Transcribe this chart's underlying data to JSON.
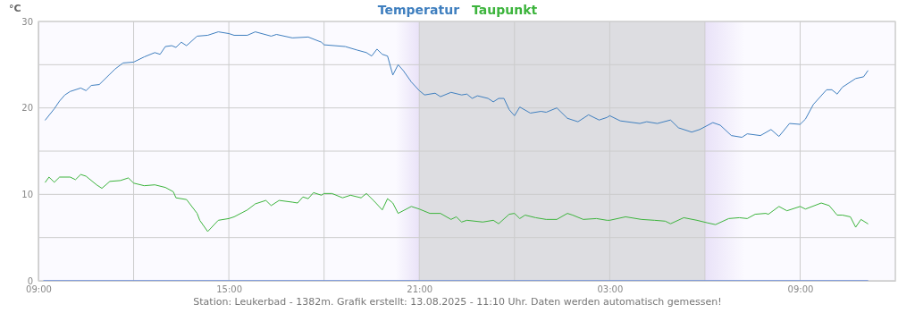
{
  "chart_data": {
    "type": "line",
    "ylabel": "°C",
    "legend": "top",
    "grid": true,
    "line_style": "solid",
    "xlim": [
      "2025-08-12T09:00",
      "2025-08-13T12:00"
    ],
    "xticks": [
      {
        "value": "2025-08-12T09:00",
        "label": "09:00"
      },
      {
        "value": "2025-08-12T12:00",
        "label": null
      },
      {
        "value": "2025-08-12T15:00",
        "label": "15:00"
      },
      {
        "value": "2025-08-12T18:00",
        "label": null
      },
      {
        "value": "2025-08-12T21:00",
        "label": "21:00"
      },
      {
        "value": "2025-08-13T00:00",
        "label": null
      },
      {
        "value": "2025-08-13T03:00",
        "label": "03:00"
      },
      {
        "value": "2025-08-13T06:00",
        "label": null
      },
      {
        "value": "2025-08-13T09:00",
        "label": "09:00"
      },
      {
        "value": "2025-08-13T12:00",
        "label": null
      }
    ],
    "ylim": [
      0,
      30
    ],
    "yticks": [
      0,
      {
        "value": 5,
        "label": null
      },
      10,
      {
        "value": 15,
        "label": null
      },
      20,
      {
        "value": 25,
        "label": null
      },
      30
    ],
    "bands": [
      {
        "axis": "x",
        "from": "2025-08-12T20:15",
        "to": "2025-08-12T21:00",
        "color": "#e9e2f8"
      },
      {
        "axis": "x",
        "from": "2025-08-12T21:00",
        "to": "2025-08-13T06:00",
        "color": "#dddde1"
      },
      {
        "axis": "x",
        "from": "2025-08-13T06:00",
        "to": "2025-08-13T07:15",
        "color": "#e9e2f8"
      }
    ],
    "annotations": [
      "Station: Leukerbad - 1382m. Grafik erstellt: 13.08.2025 - 11:10 Uhr. Daten werden automatisch gemessen!"
    ],
    "series": [
      {
        "name": "Temperatur",
        "color": "#3f7fbf",
        "x": [
          "2025-08-12T09:13",
          "2025-08-12T09:30",
          "2025-08-12T09:40",
          "2025-08-12T09:50",
          "2025-08-12T10:00",
          "2025-08-12T10:20",
          "2025-08-12T10:30",
          "2025-08-12T10:40",
          "2025-08-12T10:55",
          "2025-08-12T11:15",
          "2025-08-12T11:25",
          "2025-08-12T11:40",
          "2025-08-12T12:00",
          "2025-08-12T12:20",
          "2025-08-12T12:40",
          "2025-08-12T12:50",
          "2025-08-12T13:00",
          "2025-08-12T13:12",
          "2025-08-12T13:20",
          "2025-08-12T13:30",
          "2025-08-12T13:40",
          "2025-08-12T14:00",
          "2025-08-12T14:20",
          "2025-08-12T14:40",
          "2025-08-12T15:00",
          "2025-08-12T15:10",
          "2025-08-12T15:35",
          "2025-08-12T15:50",
          "2025-08-12T16:20",
          "2025-08-12T16:30",
          "2025-08-12T17:00",
          "2025-08-12T17:30",
          "2025-08-12T17:55",
          "2025-08-12T18:00",
          "2025-08-12T18:40",
          "2025-08-12T19:02",
          "2025-08-12T19:20",
          "2025-08-12T19:30",
          "2025-08-12T19:40",
          "2025-08-12T19:50",
          "2025-08-12T20:00",
          "2025-08-12T20:10",
          "2025-08-12T20:20",
          "2025-08-12T20:30",
          "2025-08-12T20:45",
          "2025-08-12T21:00",
          "2025-08-12T21:10",
          "2025-08-12T21:30",
          "2025-08-12T21:40",
          "2025-08-12T22:00",
          "2025-08-12T22:20",
          "2025-08-12T22:30",
          "2025-08-12T22:40",
          "2025-08-12T22:50",
          "2025-08-12T23:10",
          "2025-08-12T23:20",
          "2025-08-12T23:30",
          "2025-08-12T23:40",
          "2025-08-12T23:50",
          "2025-08-13T00:00",
          "2025-08-13T00:10",
          "2025-08-13T00:30",
          "2025-08-13T00:50",
          "2025-08-13T01:00",
          "2025-08-13T01:20",
          "2025-08-13T01:40",
          "2025-08-13T02:00",
          "2025-08-13T02:20",
          "2025-08-13T02:40",
          "2025-08-13T02:55",
          "2025-08-13T03:00",
          "2025-08-13T03:20",
          "2025-08-13T03:57",
          "2025-08-13T04:10",
          "2025-08-13T04:30",
          "2025-08-13T04:55",
          "2025-08-13T05:10",
          "2025-08-13T05:35",
          "2025-08-13T05:50",
          "2025-08-13T06:15",
          "2025-08-13T06:29",
          "2025-08-13T06:50",
          "2025-08-13T07:10",
          "2025-08-13T07:20",
          "2025-08-13T07:45",
          "2025-08-13T08:05",
          "2025-08-13T08:20",
          "2025-08-13T08:40",
          "2025-08-13T09:00",
          "2025-08-13T09:10",
          "2025-08-13T09:25",
          "2025-08-13T09:50",
          "2025-08-13T10:00",
          "2025-08-13T10:10",
          "2025-08-13T10:20",
          "2025-08-13T10:45",
          "2025-08-13T11:00",
          "2025-08-13T11:08"
        ],
        "values": [
          18.6,
          19.9,
          20.8,
          21.5,
          21.9,
          22.3,
          22.0,
          22.6,
          22.7,
          23.9,
          24.5,
          25.2,
          25.3,
          25.9,
          26.4,
          26.2,
          27.1,
          27.2,
          27.0,
          27.6,
          27.2,
          28.3,
          28.4,
          28.8,
          28.6,
          28.4,
          28.4,
          28.8,
          28.3,
          28.5,
          28.1,
          28.2,
          27.6,
          27.3,
          27.1,
          26.7,
          26.4,
          26.0,
          26.8,
          26.2,
          26.0,
          23.8,
          25.0,
          24.3,
          23.0,
          22.0,
          21.5,
          21.7,
          21.3,
          21.8,
          21.5,
          21.6,
          21.1,
          21.4,
          21.1,
          20.7,
          21.1,
          21.1,
          19.8,
          19.1,
          20.1,
          19.4,
          19.6,
          19.5,
          20.0,
          18.8,
          18.4,
          19.2,
          18.6,
          18.9,
          19.1,
          18.5,
          18.2,
          18.4,
          18.2,
          18.6,
          17.7,
          17.2,
          17.5,
          18.3,
          18.0,
          16.8,
          16.6,
          17.0,
          16.8,
          17.5,
          16.7,
          18.2,
          18.1,
          18.7,
          20.4,
          22.1,
          22.1,
          21.6,
          22.4,
          23.4,
          23.6,
          24.3
        ]
      },
      {
        "name": "Taupunkt",
        "color": "#3cb43c",
        "x": [
          "2025-08-12T09:13",
          "2025-08-12T09:20",
          "2025-08-12T09:30",
          "2025-08-12T09:40",
          "2025-08-12T10:00",
          "2025-08-12T10:10",
          "2025-08-12T10:20",
          "2025-08-12T10:30",
          "2025-08-12T10:50",
          "2025-08-12T11:00",
          "2025-08-12T11:15",
          "2025-08-12T11:35",
          "2025-08-12T11:50",
          "2025-08-12T12:00",
          "2025-08-12T12:20",
          "2025-08-12T12:40",
          "2025-08-12T13:00",
          "2025-08-12T13:15",
          "2025-08-12T13:20",
          "2025-08-12T13:40",
          "2025-08-12T14:00",
          "2025-08-12T14:05",
          "2025-08-12T14:20",
          "2025-08-12T14:40",
          "2025-08-12T15:00",
          "2025-08-12T15:10",
          "2025-08-12T15:35",
          "2025-08-12T15:50",
          "2025-08-12T16:10",
          "2025-08-12T16:20",
          "2025-08-12T16:35",
          "2025-08-12T17:00",
          "2025-08-12T17:10",
          "2025-08-12T17:20",
          "2025-08-12T17:30",
          "2025-08-12T17:40",
          "2025-08-12T17:55",
          "2025-08-12T18:00",
          "2025-08-12T18:15",
          "2025-08-12T18:35",
          "2025-08-12T18:50",
          "2025-08-12T19:10",
          "2025-08-12T19:20",
          "2025-08-12T19:35",
          "2025-08-12T19:50",
          "2025-08-12T20:00",
          "2025-08-12T20:10",
          "2025-08-12T20:20",
          "2025-08-12T20:45",
          "2025-08-12T21:00",
          "2025-08-12T21:20",
          "2025-08-12T21:40",
          "2025-08-12T22:00",
          "2025-08-12T22:10",
          "2025-08-12T22:20",
          "2025-08-12T22:30",
          "2025-08-12T23:00",
          "2025-08-12T23:20",
          "2025-08-12T23:30",
          "2025-08-12T23:50",
          "2025-08-13T00:00",
          "2025-08-13T00:10",
          "2025-08-13T00:20",
          "2025-08-13T00:40",
          "2025-08-13T01:00",
          "2025-08-13T01:20",
          "2025-08-13T01:40",
          "2025-08-13T01:50",
          "2025-08-13T02:10",
          "2025-08-13T02:35",
          "2025-08-13T02:55",
          "2025-08-13T03:00",
          "2025-08-13T03:30",
          "2025-08-13T04:00",
          "2025-08-13T04:25",
          "2025-08-13T04:45",
          "2025-08-13T04:55",
          "2025-08-13T05:20",
          "2025-08-13T05:45",
          "2025-08-13T06:05",
          "2025-08-13T06:20",
          "2025-08-13T06:45",
          "2025-08-13T07:05",
          "2025-08-13T07:20",
          "2025-08-13T07:35",
          "2025-08-13T07:55",
          "2025-08-13T08:00",
          "2025-08-13T08:20",
          "2025-08-13T08:35",
          "2025-08-13T09:00",
          "2025-08-13T09:10",
          "2025-08-13T09:40",
          "2025-08-13T09:55",
          "2025-08-13T10:10",
          "2025-08-13T10:20",
          "2025-08-13T10:35",
          "2025-08-13T10:45",
          "2025-08-13T10:55",
          "2025-08-13T11:08"
        ],
        "values": [
          11.4,
          12.0,
          11.4,
          12.0,
          12.0,
          11.7,
          12.3,
          12.1,
          11.1,
          10.7,
          11.5,
          11.6,
          11.9,
          11.3,
          11.0,
          11.1,
          10.8,
          10.3,
          9.6,
          9.4,
          7.8,
          7.0,
          5.7,
          7.0,
          7.2,
          7.4,
          8.2,
          8.9,
          9.3,
          8.7,
          9.3,
          9.1,
          9.0,
          9.7,
          9.5,
          10.2,
          9.9,
          10.1,
          10.1,
          9.6,
          9.9,
          9.6,
          10.1,
          9.2,
          8.2,
          9.5,
          9.0,
          7.8,
          8.6,
          8.3,
          7.8,
          7.8,
          7.1,
          7.4,
          6.8,
          7.0,
          6.8,
          7.0,
          6.6,
          7.7,
          7.8,
          7.2,
          7.6,
          7.3,
          7.1,
          7.1,
          7.8,
          7.6,
          7.1,
          7.2,
          7.0,
          7.0,
          7.4,
          7.1,
          7.0,
          6.9,
          6.6,
          7.3,
          7.0,
          6.7,
          6.5,
          7.2,
          7.3,
          7.2,
          7.7,
          7.8,
          7.7,
          8.6,
          8.1,
          8.6,
          8.3,
          9.0,
          8.7,
          7.6,
          7.6,
          7.4,
          6.2,
          7.1,
          6.6
        ]
      },
      {
        "color": "#3366dd",
        "x": [
          "2025-08-12T09:10",
          "2025-08-13T11:08"
        ],
        "values": [
          0,
          0
        ]
      }
    ]
  }
}
